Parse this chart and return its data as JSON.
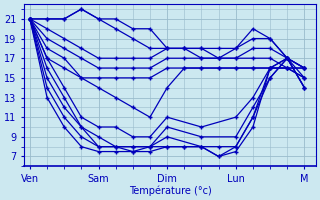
{
  "xlabel": "Température (°c)",
  "bg_color": "#cce8f0",
  "grid_color": "#99bbcc",
  "line_color": "#0000bb",
  "x_tick_labels": [
    "Ven",
    "Sam",
    "Dim",
    "Lun",
    "M"
  ],
  "x_tick_positions": [
    0,
    24,
    48,
    72,
    96
  ],
  "yticks": [
    7,
    9,
    11,
    13,
    15,
    17,
    19,
    21
  ],
  "ylim": [
    6.0,
    22.5
  ],
  "xlim": [
    -2,
    100
  ],
  "series": [
    {
      "x": [
        0,
        6,
        12,
        18,
        24,
        30,
        36,
        42,
        48,
        54,
        60,
        66,
        72,
        78,
        84,
        90,
        96
      ],
      "y": [
        21,
        21,
        21,
        22,
        21,
        21,
        20,
        20,
        18,
        18,
        18,
        17,
        18,
        20,
        19,
        17,
        16
      ]
    },
    {
      "x": [
        0,
        6,
        12,
        18,
        24,
        30,
        36,
        42,
        48,
        54,
        60,
        66,
        72,
        78,
        84,
        90,
        96
      ],
      "y": [
        21,
        21,
        21,
        22,
        21,
        20,
        19,
        18,
        18,
        18,
        18,
        18,
        18,
        19,
        19,
        17,
        16
      ]
    },
    {
      "x": [
        0,
        6,
        12,
        18,
        24,
        30,
        36,
        42,
        48,
        54,
        60,
        66,
        72,
        78,
        84,
        90,
        96
      ],
      "y": [
        21,
        20,
        19,
        18,
        17,
        17,
        17,
        17,
        18,
        18,
        17,
        17,
        17,
        18,
        18,
        17,
        16
      ]
    },
    {
      "x": [
        0,
        6,
        12,
        18,
        24,
        30,
        36,
        42,
        48,
        54,
        60,
        66,
        72,
        78,
        84,
        90,
        96
      ],
      "y": [
        21,
        19,
        18,
        17,
        16,
        16,
        16,
        16,
        17,
        17,
        17,
        17,
        17,
        17,
        17,
        16,
        16
      ]
    },
    {
      "x": [
        0,
        6,
        12,
        18,
        24,
        30,
        36,
        42,
        48,
        54,
        60,
        66,
        72,
        78,
        84,
        90,
        96
      ],
      "y": [
        21,
        17,
        16,
        15,
        15,
        15,
        15,
        15,
        16,
        16,
        16,
        16,
        16,
        16,
        16,
        16,
        16
      ]
    },
    {
      "x": [
        0,
        6,
        12,
        18,
        24,
        30,
        36,
        42,
        48,
        54,
        60,
        66,
        72,
        78,
        84,
        90,
        96
      ],
      "y": [
        21,
        18,
        17,
        15,
        14,
        13,
        12,
        11,
        14,
        16,
        16,
        16,
        16,
        16,
        16,
        16,
        15
      ]
    },
    {
      "x": [
        0,
        6,
        12,
        18,
        24,
        30,
        36,
        42,
        48,
        60,
        72,
        78,
        84,
        90,
        96
      ],
      "y": [
        21,
        17,
        14,
        11,
        10,
        10,
        9,
        9,
        11,
        10,
        11,
        13,
        16,
        17,
        14
      ]
    },
    {
      "x": [
        0,
        6,
        12,
        18,
        24,
        30,
        36,
        42,
        48,
        60,
        72,
        78,
        84,
        90,
        96
      ],
      "y": [
        21,
        16,
        13,
        10,
        9,
        8,
        8,
        8,
        10,
        9,
        9,
        12,
        15,
        17,
        14
      ]
    },
    {
      "x": [
        0,
        6,
        12,
        18,
        24,
        30,
        36,
        42,
        48,
        60,
        66,
        72,
        78,
        84,
        90,
        96
      ],
      "y": [
        21,
        15,
        12,
        10,
        8,
        8,
        8,
        8,
        9,
        8,
        8,
        8,
        11,
        15,
        17,
        14
      ]
    },
    {
      "x": [
        0,
        6,
        12,
        18,
        24,
        30,
        36,
        42,
        48,
        54,
        60,
        66,
        72,
        78,
        84,
        90,
        96
      ],
      "y": [
        21,
        14,
        11,
        9,
        8,
        8,
        7.5,
        7.5,
        8,
        8,
        8,
        7,
        8,
        11,
        16,
        17,
        15
      ]
    },
    {
      "x": [
        0,
        6,
        12,
        18,
        24,
        30,
        36,
        42,
        48,
        54,
        60,
        66,
        72,
        78,
        84,
        90,
        96
      ],
      "y": [
        21,
        13,
        10,
        8,
        7.5,
        7.5,
        7.5,
        8,
        8,
        8,
        8,
        7,
        7.5,
        10,
        16,
        16,
        15
      ]
    }
  ]
}
